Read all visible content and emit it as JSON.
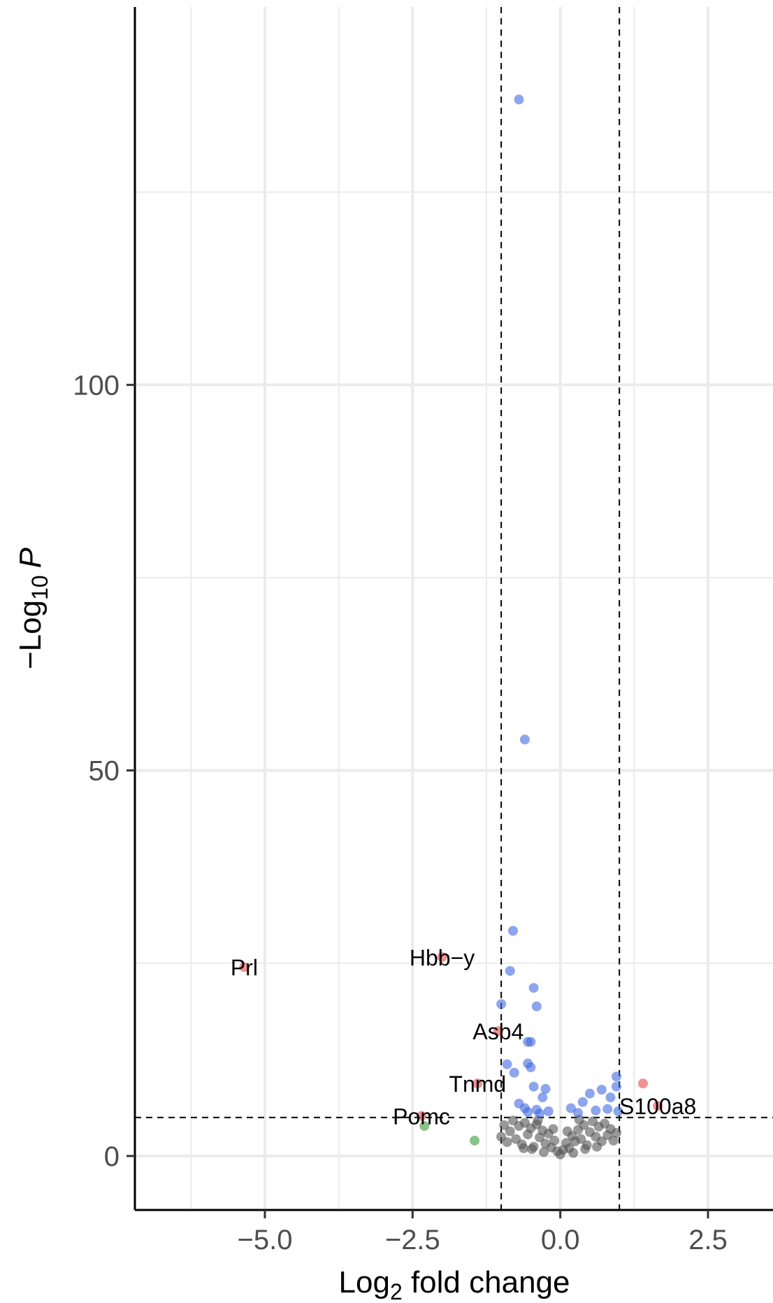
{
  "chart_data": {
    "type": "scatter",
    "title": "",
    "xlabel": "Log2 fold change",
    "xlabel_parts": {
      "base": "Log",
      "sub": "2",
      "rest": " fold change"
    },
    "ylabel": "−Log10 P",
    "ylabel_parts": {
      "prefix": "−Log",
      "sub": "10",
      "italic": "P"
    },
    "xlim": [
      -7.2,
      3.6
    ],
    "ylim": [
      -7,
      149
    ],
    "x_ticks": [
      -5.0,
      -2.5,
      0.0,
      2.5
    ],
    "x_tick_labels": [
      "−5.0",
      "−2.5",
      "0.0",
      "2.5"
    ],
    "y_ticks": [
      0,
      50,
      100
    ],
    "y_tick_labels": [
      "0",
      "50",
      "100"
    ],
    "x_minor_ticks": [
      -6.25,
      -3.75,
      -1.25,
      1.25
    ],
    "y_minor_ticks": [
      25,
      75,
      125
    ],
    "grid": true,
    "fc_cutoff": 1.0,
    "p_cutoff": 5.0,
    "colors": {
      "ns": "#555555",
      "p_only": "#4169e1",
      "fc_only": "#3c9a3c",
      "both": "#e8484a"
    },
    "series": [
      {
        "category": "both",
        "points": [
          {
            "x": -5.35,
            "y": 24.5,
            "label": "Prl"
          },
          {
            "x": -2.0,
            "y": 25.8,
            "label": "Hbb−y"
          },
          {
            "x": -1.05,
            "y": 16.2,
            "label": "Asb4"
          },
          {
            "x": -1.4,
            "y": 9.4,
            "label": "Tnmd"
          },
          {
            "x": -2.35,
            "y": 5.2,
            "label": "Pomc"
          },
          {
            "x": 1.65,
            "y": 6.5,
            "label": "S100a8"
          },
          {
            "x": 1.4,
            "y": 9.4
          }
        ]
      },
      {
        "category": "fc_only",
        "points": [
          {
            "x": -2.3,
            "y": 3.9
          },
          {
            "x": -1.45,
            "y": 2.0
          }
        ]
      },
      {
        "category": "p_only",
        "points": [
          {
            "x": -0.7,
            "y": 137.0
          },
          {
            "x": -0.6,
            "y": 54.0
          },
          {
            "x": -0.8,
            "y": 29.2
          },
          {
            "x": -0.85,
            "y": 24.0
          },
          {
            "x": -0.45,
            "y": 21.8
          },
          {
            "x": -0.4,
            "y": 19.4
          },
          {
            "x": -1.0,
            "y": 19.7
          },
          {
            "x": -0.55,
            "y": 14.8
          },
          {
            "x": -0.5,
            "y": 14.8
          },
          {
            "x": -0.9,
            "y": 11.9
          },
          {
            "x": -0.55,
            "y": 12.0
          },
          {
            "x": -0.5,
            "y": 11.5
          },
          {
            "x": -0.78,
            "y": 10.8
          },
          {
            "x": -0.45,
            "y": 9.0
          },
          {
            "x": -0.25,
            "y": 8.7
          },
          {
            "x": -0.3,
            "y": 7.6
          },
          {
            "x": -0.7,
            "y": 6.8
          },
          {
            "x": -0.6,
            "y": 6.2
          },
          {
            "x": -0.4,
            "y": 6.0
          },
          {
            "x": -0.2,
            "y": 5.8
          },
          {
            "x": -0.55,
            "y": 5.7
          },
          {
            "x": -0.35,
            "y": 5.5
          },
          {
            "x": 0.95,
            "y": 10.3
          },
          {
            "x": 0.95,
            "y": 9.0
          },
          {
            "x": 0.7,
            "y": 8.6
          },
          {
            "x": 0.5,
            "y": 8.1
          },
          {
            "x": 0.85,
            "y": 7.6
          },
          {
            "x": 0.38,
            "y": 7.0
          },
          {
            "x": 0.18,
            "y": 6.2
          },
          {
            "x": 0.6,
            "y": 5.9
          },
          {
            "x": 0.3,
            "y": 5.6
          },
          {
            "x": 0.8,
            "y": 6.1
          },
          {
            "x": 0.98,
            "y": 5.8
          }
        ]
      },
      {
        "category": "ns",
        "points": [
          {
            "x": -1.0,
            "y": 2.5
          },
          {
            "x": -0.95,
            "y": 4.0
          },
          {
            "x": -0.9,
            "y": 1.8
          },
          {
            "x": -0.85,
            "y": 3.2
          },
          {
            "x": -0.8,
            "y": 4.6
          },
          {
            "x": -0.75,
            "y": 2.2
          },
          {
            "x": -0.7,
            "y": 3.9
          },
          {
            "x": -0.65,
            "y": 1.5
          },
          {
            "x": -0.6,
            "y": 4.3
          },
          {
            "x": -0.55,
            "y": 2.8
          },
          {
            "x": -0.5,
            "y": 3.6
          },
          {
            "x": -0.45,
            "y": 1.2
          },
          {
            "x": -0.4,
            "y": 4.1
          },
          {
            "x": -0.35,
            "y": 2.4
          },
          {
            "x": -0.3,
            "y": 3.3
          },
          {
            "x": -0.25,
            "y": 1.6
          },
          {
            "x": -0.2,
            "y": 2.9
          },
          {
            "x": -0.15,
            "y": 1.1
          },
          {
            "x": -0.1,
            "y": 2.0
          },
          {
            "x": -0.05,
            "y": 0.6
          },
          {
            "x": 0.0,
            "y": 0.2
          },
          {
            "x": 0.05,
            "y": 0.8
          },
          {
            "x": 0.1,
            "y": 1.7
          },
          {
            "x": 0.15,
            "y": 1.0
          },
          {
            "x": 0.2,
            "y": 2.6
          },
          {
            "x": 0.25,
            "y": 1.9
          },
          {
            "x": 0.3,
            "y": 3.4
          },
          {
            "x": 0.35,
            "y": 2.2
          },
          {
            "x": 0.4,
            "y": 4.0
          },
          {
            "x": 0.45,
            "y": 1.4
          },
          {
            "x": 0.5,
            "y": 3.1
          },
          {
            "x": 0.55,
            "y": 4.5
          },
          {
            "x": 0.6,
            "y": 2.5
          },
          {
            "x": 0.65,
            "y": 3.8
          },
          {
            "x": 0.7,
            "y": 1.9
          },
          {
            "x": 0.75,
            "y": 4.2
          },
          {
            "x": 0.8,
            "y": 2.7
          },
          {
            "x": 0.85,
            "y": 3.5
          },
          {
            "x": 0.9,
            "y": 2.0
          },
          {
            "x": 0.95,
            "y": 3.0
          },
          {
            "x": -0.48,
            "y": 0.9
          },
          {
            "x": -0.28,
            "y": 0.5
          },
          {
            "x": 0.22,
            "y": 0.4
          },
          {
            "x": 0.42,
            "y": 0.9
          },
          {
            "x": -0.62,
            "y": 1.0
          },
          {
            "x": 0.62,
            "y": 1.2
          },
          {
            "x": -0.12,
            "y": 3.5
          },
          {
            "x": 0.12,
            "y": 3.2
          },
          {
            "x": -0.38,
            "y": 4.6
          },
          {
            "x": 0.32,
            "y": 4.7
          }
        ]
      }
    ]
  }
}
